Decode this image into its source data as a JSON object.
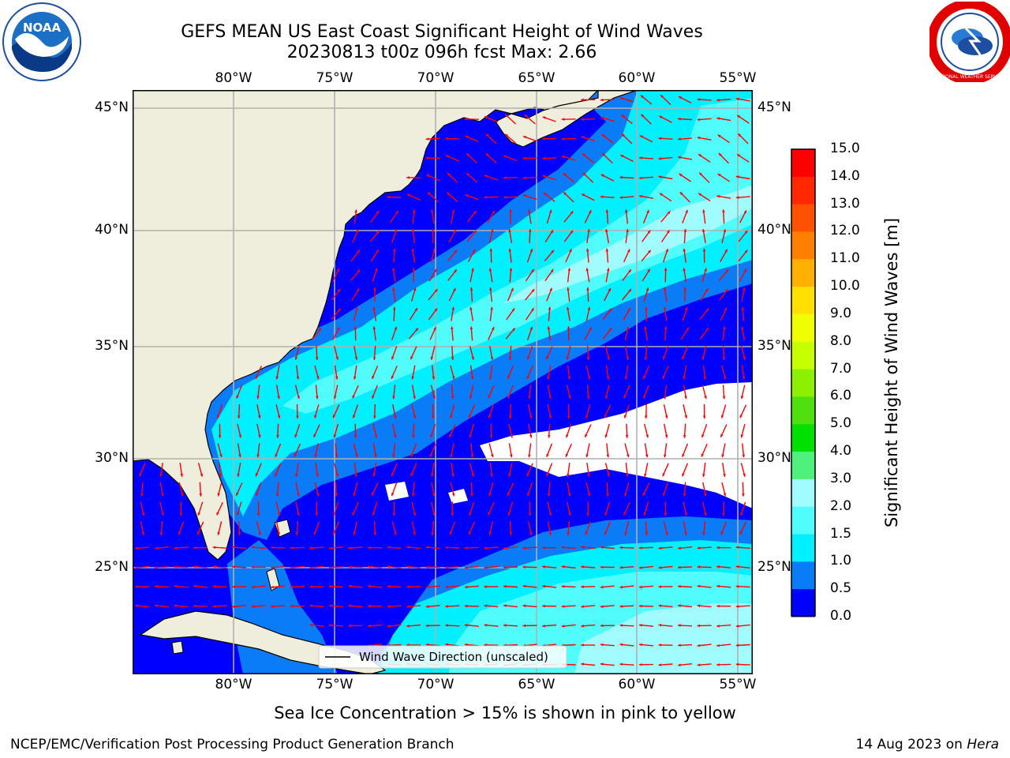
{
  "title_line1": "GEFS MEAN US East Coast Significant Height of Wind Waves",
  "title_line2": "20230813 t00z 096h fcst   Max: 2.66",
  "caption": "Sea Ice Concentration > 15% is shown in pink to yellow",
  "footer_left": "NCEP/EMC/Verification Post Processing Product Generation Branch",
  "footer_right_prefix": "14 Aug 2023 on ",
  "footer_right_host": "Hera",
  "legend_label": "Wind Wave Direction (unscaled)",
  "colorbar_label": "Significant Height of Wind Waves [m]",
  "logos": {
    "left": "NOAA",
    "right": "NATIONAL WEATHER SERVICE"
  },
  "map": {
    "lon_ticks": [
      "80°W",
      "75°W",
      "70°W",
      "65°W",
      "60°W",
      "55°W"
    ],
    "lat_ticks": [
      "45°N",
      "40°N",
      "35°N",
      "30°N",
      "25°N"
    ],
    "lon_values": [
      -80,
      -75,
      -70,
      -65,
      -60,
      -55
    ],
    "lat_values": [
      45,
      40,
      35,
      30,
      25
    ],
    "lon_range": [
      -85,
      -54.5
    ],
    "lat_range": [
      20.5,
      46
    ],
    "grid": true,
    "land_color": "#efeedc",
    "arrow_color": "#ff0000"
  },
  "colorbar": {
    "ticks": [
      "15.0",
      "14.0",
      "13.0",
      "12.0",
      "11.0",
      "10.0",
      "9.0",
      "8.0",
      "7.0",
      "6.0",
      "5.0",
      "4.0",
      "3.0",
      "2.0",
      "1.5",
      "1.0",
      "0.5",
      "0.0"
    ],
    "bands": [
      {
        "range": [
          14,
          15
        ],
        "color": "#ff0000"
      },
      {
        "range": [
          13,
          14
        ],
        "color": "#ff2800"
      },
      {
        "range": [
          12,
          13
        ],
        "color": "#ff5200"
      },
      {
        "range": [
          11,
          12
        ],
        "color": "#ff8000"
      },
      {
        "range": [
          10,
          11
        ],
        "color": "#ffb000"
      },
      {
        "range": [
          9,
          10
        ],
        "color": "#ffe000"
      },
      {
        "range": [
          8,
          9
        ],
        "color": "#f0ff00"
      },
      {
        "range": [
          7,
          8
        ],
        "color": "#c8ff00"
      },
      {
        "range": [
          6,
          7
        ],
        "color": "#8cf000"
      },
      {
        "range": [
          5,
          6
        ],
        "color": "#50e010"
      },
      {
        "range": [
          4,
          5
        ],
        "color": "#00e000"
      },
      {
        "range": [
          3,
          4
        ],
        "color": "#50f07c"
      },
      {
        "range": [
          2,
          3
        ],
        "color": "#a0fcff"
      },
      {
        "range": [
          1.5,
          2
        ],
        "color": "#50fcfc"
      },
      {
        "range": [
          1,
          1.5
        ],
        "color": "#00f0ff"
      },
      {
        "range": [
          0.5,
          1
        ],
        "color": "#0a7cf8"
      },
      {
        "range": [
          0,
          0.5
        ],
        "color": "#0000ff"
      }
    ]
  }
}
